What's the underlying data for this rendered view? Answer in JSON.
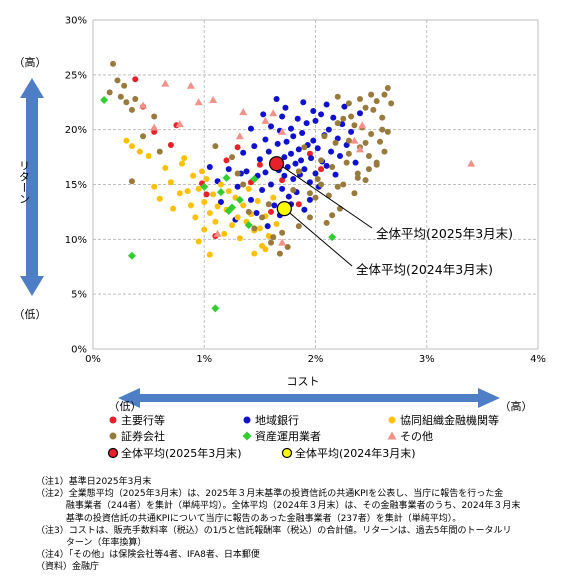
{
  "chart_data": {
    "type": "scatter",
    "title": "",
    "xlabel": "コスト",
    "ylabel": "リターン",
    "xlim": [
      0,
      4
    ],
    "ylim": [
      0,
      30
    ],
    "x_ticks": [
      "0%",
      "1%",
      "2%",
      "3%",
      "4%"
    ],
    "y_ticks": [
      "0%",
      "5%",
      "10%",
      "15%",
      "20%",
      "25%",
      "30%"
    ],
    "grid": true,
    "y_arrow": {
      "high": "（高）",
      "low": "（低）"
    },
    "x_arrow": {
      "low": "（低）",
      "high": "（高）"
    },
    "annotations": [
      {
        "text": "全体平均(2025年3月末)",
        "target": [
          1.65,
          16.9
        ]
      },
      {
        "text": "全体平均(2024年3月末)",
        "target": [
          1.72,
          12.8
        ]
      }
    ],
    "legend_position": "bottom",
    "legend": [
      {
        "name": "主要行等",
        "marker": "circle",
        "color": "#e8202a"
      },
      {
        "name": "地域銀行",
        "marker": "circle",
        "color": "#1010d0"
      },
      {
        "name": "協同組織金融機関等",
        "marker": "circle",
        "color": "#ffc000"
      },
      {
        "name": "証券会社",
        "marker": "circle",
        "color": "#997a3d"
      },
      {
        "name": "資産運用業者",
        "marker": "diamond",
        "color": "#33cc33"
      },
      {
        "name": "その他",
        "marker": "triangle",
        "color": "#f4928a"
      },
      {
        "name": "全体平均(2025年3月末)",
        "marker": "circle-outlined",
        "color": "#e8202a"
      },
      {
        "name": "全体平均(2024年3月末)",
        "marker": "circle-outlined",
        "color": "#ffff00"
      }
    ],
    "series": [
      {
        "name": "主要行等",
        "points": [
          [
            0.38,
            24.6
          ],
          [
            0.45,
            22.1
          ],
          [
            0.55,
            19.8
          ],
          [
            0.7,
            18.6
          ],
          [
            0.75,
            20.4
          ],
          [
            0.98,
            15.1
          ],
          [
            1.02,
            14.1
          ],
          [
            1.1,
            10.3
          ],
          [
            1.2,
            17.2
          ],
          [
            1.3,
            18.4
          ],
          [
            1.42,
            15.2
          ],
          [
            1.5,
            16.8
          ],
          [
            1.6,
            12.5
          ],
          [
            1.7,
            15.4
          ],
          [
            1.85,
            13.2
          ],
          [
            1.95,
            17.8
          ],
          [
            2.05,
            16.4
          ]
        ]
      },
      {
        "name": "地域銀行",
        "points": [
          [
            1.12,
            15.3
          ],
          [
            1.22,
            16.4
          ],
          [
            1.3,
            14.8
          ],
          [
            1.35,
            17.9
          ],
          [
            1.38,
            16.2
          ],
          [
            1.42,
            13.6
          ],
          [
            1.45,
            18.5
          ],
          [
            1.48,
            15.8
          ],
          [
            1.5,
            17.3
          ],
          [
            1.52,
            14.5
          ],
          [
            1.55,
            19.1
          ],
          [
            1.55,
            16.1
          ],
          [
            1.58,
            18.0
          ],
          [
            1.6,
            15.0
          ],
          [
            1.6,
            20.3
          ],
          [
            1.62,
            17.0
          ],
          [
            1.63,
            13.1
          ],
          [
            1.65,
            22.8
          ],
          [
            1.66,
            18.7
          ],
          [
            1.67,
            16.3
          ],
          [
            1.68,
            19.9
          ],
          [
            1.7,
            14.6
          ],
          [
            1.7,
            21.2
          ],
          [
            1.72,
            17.5
          ],
          [
            1.72,
            15.8
          ],
          [
            1.74,
            18.9
          ],
          [
            1.75,
            16.6
          ],
          [
            1.76,
            13.9
          ],
          [
            1.78,
            20.1
          ],
          [
            1.78,
            17.8
          ],
          [
            1.8,
            15.5
          ],
          [
            1.8,
            19.4
          ],
          [
            1.82,
            16.9
          ],
          [
            1.83,
            14.3
          ],
          [
            1.84,
            21.0
          ],
          [
            1.85,
            18.2
          ],
          [
            1.86,
            15.9
          ],
          [
            1.87,
            17.2
          ],
          [
            1.88,
            19.7
          ],
          [
            1.9,
            16.4
          ],
          [
            1.9,
            12.7
          ],
          [
            1.92,
            20.6
          ],
          [
            1.93,
            18.6
          ],
          [
            1.95,
            15.2
          ],
          [
            1.96,
            17.4
          ],
          [
            1.98,
            21.7
          ],
          [
            1.98,
            19.0
          ],
          [
            2.0,
            16.0
          ],
          [
            2.0,
            20.8
          ],
          [
            2.02,
            18.3
          ],
          [
            2.03,
            14.8
          ],
          [
            2.05,
            21.4
          ],
          [
            2.06,
            17.1
          ],
          [
            2.08,
            19.5
          ],
          [
            2.1,
            16.7
          ],
          [
            2.1,
            22.3
          ],
          [
            2.12,
            20.0
          ],
          [
            2.14,
            18.0
          ],
          [
            2.16,
            21.1
          ],
          [
            2.18,
            15.9
          ],
          [
            2.2,
            19.2
          ],
          [
            2.22,
            17.6
          ],
          [
            2.24,
            20.5
          ],
          [
            2.26,
            22.1
          ],
          [
            2.28,
            18.6
          ],
          [
            2.32,
            19.8
          ],
          [
            2.36,
            17.0
          ],
          [
            2.4,
            21.5
          ],
          [
            1.05,
            16.6
          ],
          [
            1.15,
            13.4
          ],
          [
            1.28,
            11.8
          ],
          [
            1.33,
            16.0
          ],
          [
            1.42,
            20.1
          ],
          [
            1.47,
            12.4
          ],
          [
            1.53,
            21.4
          ],
          [
            1.57,
            11.2
          ],
          [
            1.68,
            12.2
          ],
          [
            1.73,
            22.0
          ],
          [
            1.78,
            13.2
          ],
          [
            1.89,
            22.5
          ],
          [
            1.95,
            13.6
          ]
        ]
      },
      {
        "name": "協同組織金融機関等",
        "points": [
          [
            0.3,
            19.0
          ],
          [
            0.35,
            18.5
          ],
          [
            0.42,
            18.0
          ],
          [
            0.5,
            17.6
          ],
          [
            0.55,
            14.8
          ],
          [
            0.6,
            13.7
          ],
          [
            0.65,
            16.5
          ],
          [
            0.7,
            15.2
          ],
          [
            0.72,
            12.8
          ],
          [
            0.78,
            14.2
          ],
          [
            0.8,
            16.9
          ],
          [
            0.82,
            17.4
          ],
          [
            0.85,
            14.4
          ],
          [
            0.88,
            13.1
          ],
          [
            0.9,
            15.8
          ],
          [
            0.92,
            12.0
          ],
          [
            0.95,
            14.6
          ],
          [
            0.98,
            16.2
          ],
          [
            1.0,
            10.9
          ],
          [
            1.0,
            13.4
          ],
          [
            1.02,
            15.5
          ],
          [
            1.05,
            12.4
          ],
          [
            1.08,
            14.1
          ],
          [
            1.1,
            11.6
          ],
          [
            1.12,
            13.0
          ],
          [
            1.15,
            15.0
          ],
          [
            1.18,
            10.5
          ],
          [
            1.2,
            12.7
          ],
          [
            1.22,
            14.4
          ],
          [
            1.25,
            11.3
          ],
          [
            1.28,
            13.8
          ],
          [
            1.3,
            12.0
          ],
          [
            1.32,
            10.1
          ],
          [
            1.35,
            13.1
          ],
          [
            1.38,
            11.6
          ],
          [
            1.4,
            14.6
          ],
          [
            1.42,
            12.3
          ],
          [
            1.45,
            10.8
          ],
          [
            1.48,
            13.5
          ],
          [
            1.5,
            11.0
          ],
          [
            1.52,
            9.4
          ],
          [
            1.55,
            12.1
          ],
          [
            1.58,
            10.3
          ],
          [
            1.62,
            13.8
          ],
          [
            1.65,
            11.4
          ],
          [
            1.45,
            8.7
          ],
          [
            1.55,
            9.1
          ],
          [
            0.95,
            9.8
          ],
          [
            1.05,
            8.6
          ]
        ]
      },
      {
        "name": "証券会社",
        "points": [
          [
            0.18,
            26.0
          ],
          [
            0.22,
            24.5
          ],
          [
            0.28,
            24.0
          ],
          [
            0.3,
            22.5
          ],
          [
            0.35,
            21.8
          ],
          [
            0.15,
            23.4
          ],
          [
            0.25,
            23.0
          ],
          [
            0.38,
            22.8
          ],
          [
            0.45,
            19.4
          ],
          [
            0.55,
            21.2
          ],
          [
            0.35,
            15.3
          ],
          [
            0.6,
            18.0
          ],
          [
            1.1,
            18.5
          ],
          [
            1.25,
            17.5
          ],
          [
            1.3,
            16.0
          ],
          [
            1.35,
            15.0
          ],
          [
            1.4,
            12.5
          ],
          [
            1.45,
            11.0
          ],
          [
            1.6,
            9.7
          ],
          [
            1.68,
            8.7
          ],
          [
            1.7,
            10.6
          ],
          [
            1.75,
            12.6
          ],
          [
            1.8,
            14.5
          ],
          [
            1.85,
            16.2
          ],
          [
            1.9,
            18.4
          ],
          [
            1.95,
            12.0
          ],
          [
            2.0,
            13.8
          ],
          [
            2.02,
            15.5
          ],
          [
            2.05,
            17.2
          ],
          [
            2.08,
            19.4
          ],
          [
            2.1,
            11.5
          ],
          [
            2.12,
            14.0
          ],
          [
            2.15,
            16.6
          ],
          [
            2.18,
            18.8
          ],
          [
            2.2,
            20.6
          ],
          [
            2.22,
            12.8
          ],
          [
            2.25,
            15.0
          ],
          [
            2.28,
            17.0
          ],
          [
            2.3,
            19.0
          ],
          [
            2.32,
            21.2
          ],
          [
            2.35,
            14.2
          ],
          [
            2.38,
            16.0
          ],
          [
            2.4,
            18.4
          ],
          [
            2.42,
            20.2
          ],
          [
            2.45,
            15.4
          ],
          [
            2.48,
            17.6
          ],
          [
            2.5,
            19.6
          ],
          [
            2.52,
            21.8
          ],
          [
            2.55,
            16.8
          ],
          [
            2.58,
            18.9
          ],
          [
            2.6,
            21.1
          ],
          [
            2.62,
            23.2
          ],
          [
            2.65,
            19.8
          ],
          [
            2.68,
            22.4
          ],
          [
            2.6,
            20.0
          ],
          [
            2.55,
            22.6
          ],
          [
            2.5,
            23.2
          ],
          [
            2.45,
            22.0
          ],
          [
            2.4,
            22.8
          ],
          [
            2.35,
            20.4
          ],
          [
            2.3,
            22.4
          ],
          [
            2.25,
            21.0
          ],
          [
            2.2,
            23.0
          ],
          [
            2.65,
            23.8
          ],
          [
            2.62,
            18.0
          ],
          [
            2.55,
            17.0
          ],
          [
            2.48,
            16.4
          ],
          [
            2.45,
            18.8
          ],
          [
            2.38,
            15.6
          ],
          [
            2.3,
            17.8
          ],
          [
            2.2,
            14.8
          ],
          [
            2.15,
            12.2
          ],
          [
            2.05,
            15.0
          ],
          [
            1.95,
            14.2
          ],
          [
            1.85,
            11.2
          ],
          [
            1.75,
            9.3
          ],
          [
            1.62,
            10.2
          ],
          [
            1.52,
            12.0
          ],
          [
            1.58,
            13.2
          ]
        ]
      },
      {
        "name": "資産運用業者",
        "points": [
          [
            0.1,
            22.7
          ],
          [
            0.35,
            8.5
          ],
          [
            1.0,
            14.8
          ],
          [
            1.1,
            3.7
          ],
          [
            1.15,
            14.3
          ],
          [
            1.22,
            12.6
          ],
          [
            1.25,
            12.9
          ],
          [
            2.15,
            10.2
          ],
          [
            1.32,
            13.6
          ],
          [
            1.45,
            15.5
          ],
          [
            1.2,
            15.6
          ],
          [
            1.4,
            11.3
          ]
        ]
      },
      {
        "name": "その他",
        "points": [
          [
            0.45,
            22.2
          ],
          [
            0.55,
            20.2
          ],
          [
            0.65,
            24.2
          ],
          [
            0.78,
            20.5
          ],
          [
            0.88,
            24.0
          ],
          [
            0.95,
            22.5
          ],
          [
            1.08,
            22.7
          ],
          [
            1.12,
            10.5
          ],
          [
            1.32,
            19.4
          ],
          [
            1.35,
            21.6
          ],
          [
            1.55,
            20.8
          ],
          [
            1.62,
            21.5
          ],
          [
            1.7,
            19.8
          ],
          [
            1.7,
            9.7
          ],
          [
            2.35,
            19.0
          ],
          [
            2.4,
            18.2
          ],
          [
            2.42,
            20.4
          ],
          [
            3.4,
            16.9
          ]
        ]
      },
      {
        "name": "全体平均(2025年3月末)",
        "points": [
          [
            1.65,
            16.9
          ]
        ]
      },
      {
        "name": "全体平均(2024年3月末)",
        "points": [
          [
            1.72,
            12.8
          ]
        ]
      }
    ]
  },
  "notes": [
    "（注1）基準日2025年3月末",
    "（注2）全業態平均（2025年3月末）は、2025年３月末基準の投資信託の共通KPIを公表し、当庁に報告を行った金\n　　　 融事業者（244者）を集計（単純平均）。全体平均（2024年３月末）は、その金融事業者のうち、2024年３月末\n　　　 基準の投資信託の共通KPIについて当庁に報告のあった金融事業者（237者）を集計（単純平均）。",
    "（注3）コストは、販売手数料率（税込）の1/5と信託報酬率（税込）の合計値。リターンは、過去5年間のトータルリ\n　　　 ターン（年率換算）",
    "（注4）「その他」は保険会社等4者、IFA8者、日本郵便",
    "（資料）金融庁"
  ]
}
